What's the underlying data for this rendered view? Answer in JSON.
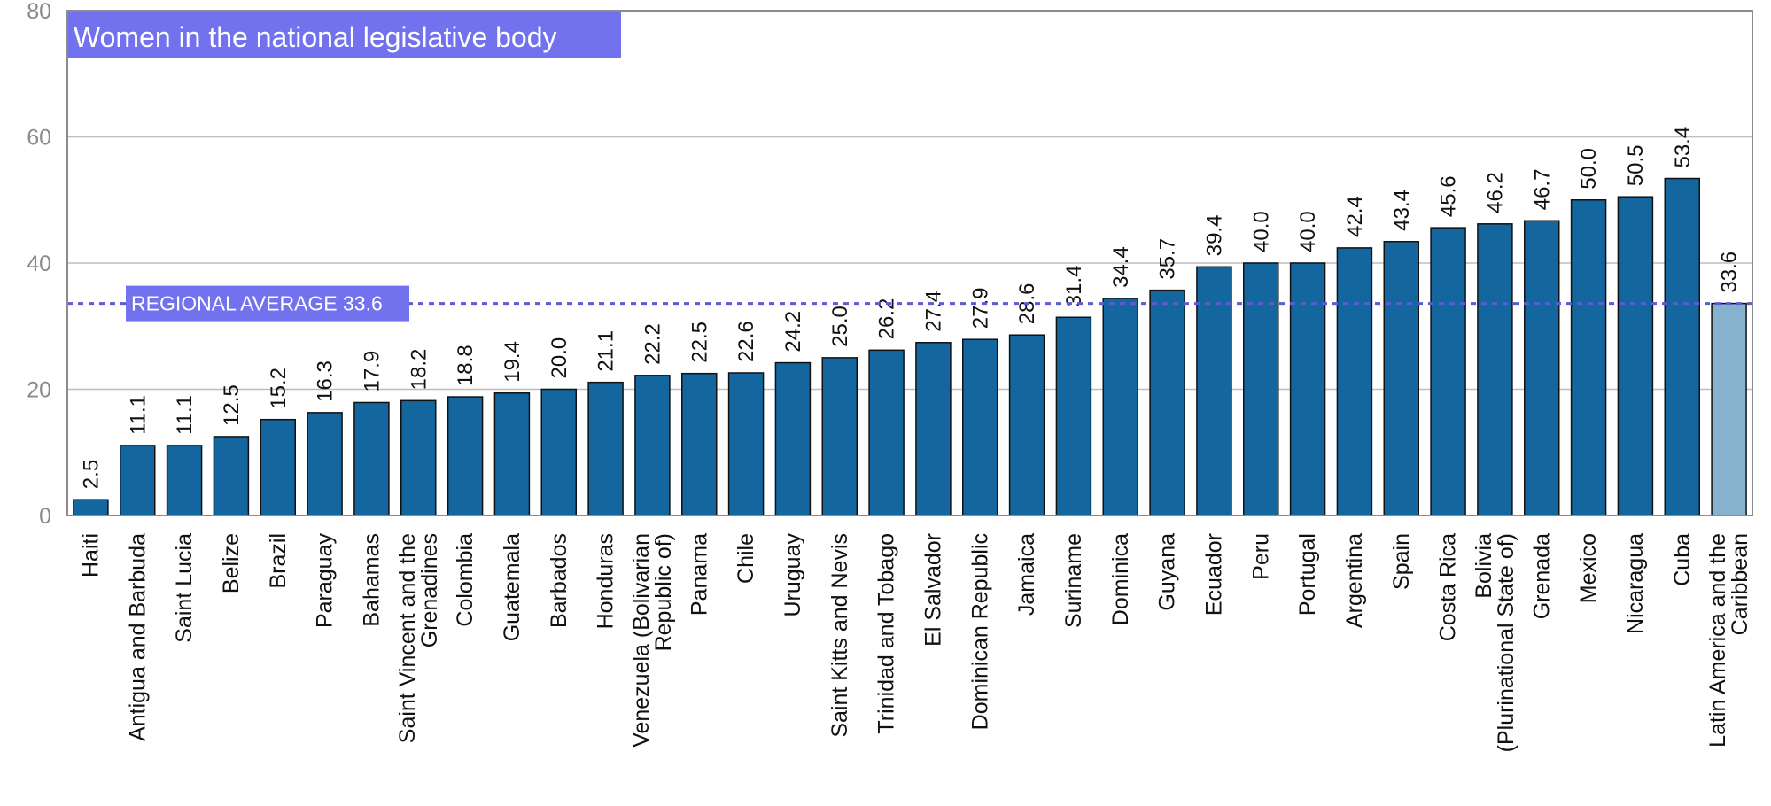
{
  "chart_data": {
    "type": "bar",
    "title": "Women in the national legislative body",
    "xlabel": "",
    "ylabel": "",
    "ylim": [
      0,
      80
    ],
    "yticks": [
      0,
      20,
      40,
      60,
      80
    ],
    "grid": true,
    "categories": [
      [
        "Haiti"
      ],
      [
        "Antigua and Barbuda"
      ],
      [
        "Saint Lucia"
      ],
      [
        "Belize"
      ],
      [
        "Brazil"
      ],
      [
        "Paraguay"
      ],
      [
        "Bahamas"
      ],
      [
        "Saint Vincent and the",
        "Grenadines"
      ],
      [
        "Colombia"
      ],
      [
        "Guatemala"
      ],
      [
        "Barbados"
      ],
      [
        "Honduras"
      ],
      [
        "Venezuela (Bolivarian",
        "Republic of)"
      ],
      [
        "Panama"
      ],
      [
        "Chile"
      ],
      [
        "Uruguay"
      ],
      [
        "Saint Kitts and Nevis"
      ],
      [
        "Trinidad and Tobago"
      ],
      [
        "El Salvador"
      ],
      [
        "Dominican Republic"
      ],
      [
        "Jamaica"
      ],
      [
        "Suriname"
      ],
      [
        "Dominica"
      ],
      [
        "Guyana"
      ],
      [
        "Ecuador"
      ],
      [
        "Peru"
      ],
      [
        "Portugal"
      ],
      [
        "Argentina"
      ],
      [
        "Spain"
      ],
      [
        "Costa Rica"
      ],
      [
        "Bolivia",
        "(Plurinational State of)"
      ],
      [
        "Grenada"
      ],
      [
        "Mexico"
      ],
      [
        "Nicaragua"
      ],
      [
        "Cuba"
      ],
      [
        "Latin America and the",
        "Caribbean"
      ]
    ],
    "values": [
      2.5,
      11.1,
      11.1,
      12.5,
      15.2,
      16.3,
      17.9,
      18.2,
      18.8,
      19.4,
      20.0,
      21.1,
      22.2,
      22.5,
      22.6,
      24.2,
      25.0,
      26.2,
      27.4,
      27.9,
      28.6,
      31.4,
      34.4,
      35.7,
      39.4,
      40.0,
      40.0,
      42.4,
      43.4,
      45.6,
      46.2,
      46.7,
      50.0,
      50.5,
      53.4,
      33.6
    ],
    "value_labels": [
      "2.5",
      "11.1",
      "11.1",
      "12.5",
      "15.2",
      "16.3",
      "17.9",
      "18.2",
      "18.8",
      "19.4",
      "20.0",
      "21.1",
      "22.2",
      "22.5",
      "22.6",
      "24.2",
      "25.0",
      "26.2",
      "27.4",
      "27.9",
      "28.6",
      "31.4",
      "34.4",
      "35.7",
      "39.4",
      "40.0",
      "40.0",
      "42.4",
      "43.4",
      "45.6",
      "46.2",
      "46.7",
      "50.0",
      "50.5",
      "53.4",
      "33.6"
    ],
    "highlight_last": true,
    "reference_line": {
      "value": 33.6,
      "label": "REGIONAL AVERAGE 33.6",
      "style": "dashed"
    },
    "colors": {
      "bar": "#13679e",
      "bar_highlight": "#86b2ce",
      "bar_outline": "#111111",
      "title_bg": "#7272ee",
      "avg_line": "#5b5bd6",
      "avg_label_bg": "#7272ee",
      "grid": "#bdbdbd",
      "frame": "#8c8c8c"
    }
  }
}
